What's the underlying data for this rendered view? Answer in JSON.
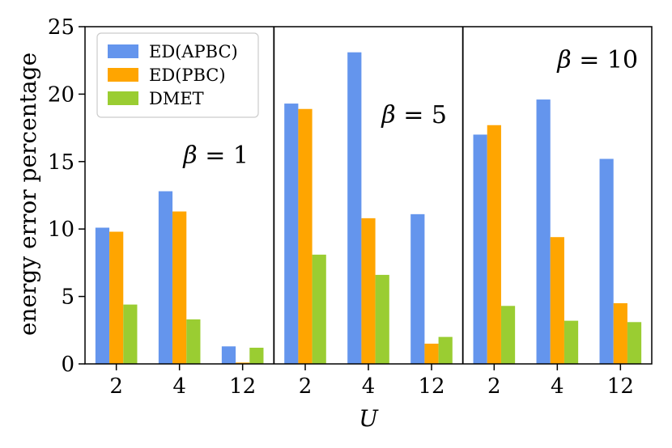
{
  "chart_data": {
    "type": "bar",
    "title": "",
    "xlabel": "U",
    "ylabel": "energy error percentage",
    "ylim": [
      0,
      25
    ],
    "yticks": [
      0,
      5,
      10,
      15,
      20,
      25
    ],
    "grid": false,
    "legend_position": "top-left",
    "legend": [
      "ED(APBC)",
      "ED(PBC)",
      "DMET"
    ],
    "colors": {
      "ED(APBC)": "#6495ED",
      "ED(PBC)": "#FFA500",
      "DMET": "#9ACD32"
    },
    "panels": [
      {
        "annotation": {
          "symbol": "β",
          "rest": " = 1"
        },
        "categories": [
          "2",
          "4",
          "12"
        ],
        "series": [
          {
            "name": "ED(APBC)",
            "values": [
              10.1,
              12.8,
              1.3
            ]
          },
          {
            "name": "ED(PBC)",
            "values": [
              9.8,
              11.3,
              0.1
            ]
          },
          {
            "name": "DMET",
            "values": [
              4.4,
              3.3,
              1.2
            ]
          }
        ]
      },
      {
        "annotation": {
          "symbol": "β",
          "rest": " = 5"
        },
        "categories": [
          "2",
          "4",
          "12"
        ],
        "series": [
          {
            "name": "ED(APBC)",
            "values": [
              19.3,
              23.1,
              11.1
            ]
          },
          {
            "name": "ED(PBC)",
            "values": [
              18.9,
              10.8,
              1.5
            ]
          },
          {
            "name": "DMET",
            "values": [
              8.1,
              6.6,
              2.0
            ]
          }
        ]
      },
      {
        "annotation": {
          "symbol": "β",
          "rest": " = 10"
        },
        "categories": [
          "2",
          "4",
          "12"
        ],
        "series": [
          {
            "name": "ED(APBC)",
            "values": [
              17.0,
              19.6,
              15.2
            ]
          },
          {
            "name": "ED(PBC)",
            "values": [
              17.7,
              9.4,
              4.5
            ]
          },
          {
            "name": "DMET",
            "values": [
              4.3,
              3.2,
              3.1
            ]
          }
        ]
      }
    ]
  }
}
